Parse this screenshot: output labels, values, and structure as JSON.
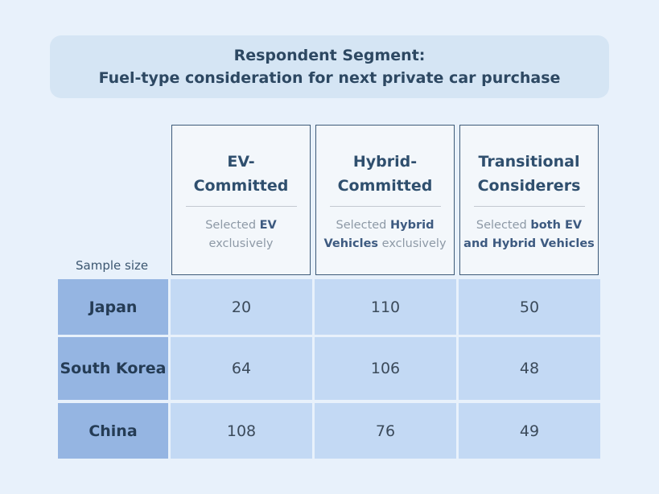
{
  "title": {
    "line1": "Respondent Segment:",
    "line2": "Fuel-type consideration for next private car purchase"
  },
  "table": {
    "corner_label": "Sample size",
    "columns": [
      {
        "name": "EV-Committed",
        "description": [
          {
            "text": "Selected ",
            "bold": false
          },
          {
            "text": "EV",
            "bold": true
          },
          {
            "text": " exclusively",
            "bold": false
          }
        ]
      },
      {
        "name": "Hybrid-Committed",
        "description": [
          {
            "text": "Selected ",
            "bold": false
          },
          {
            "text": "Hybrid Vehicles",
            "bold": true
          },
          {
            "text": " exclusively",
            "bold": false
          }
        ]
      },
      {
        "name": "Transitional Considerers",
        "description": [
          {
            "text": "Selected ",
            "bold": false
          },
          {
            "text": "both EV and Hybrid Vehicles",
            "bold": true
          }
        ]
      }
    ],
    "rows": [
      {
        "name": "Japan",
        "values": [
          20,
          110,
          50
        ]
      },
      {
        "name": "South Korea",
        "values": [
          64,
          106,
          48
        ]
      },
      {
        "name": "China",
        "values": [
          108,
          76,
          49
        ]
      }
    ]
  }
}
